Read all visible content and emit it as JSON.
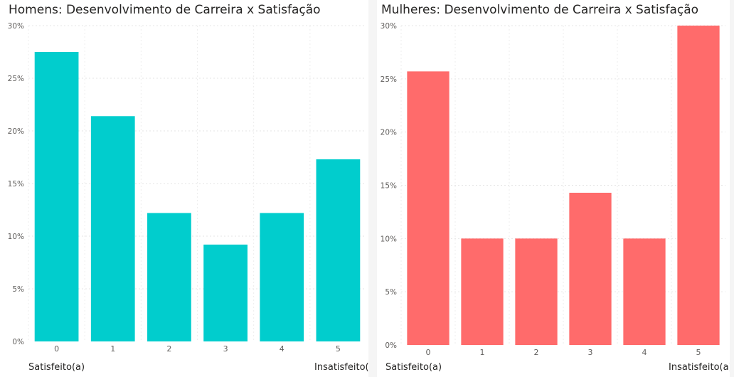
{
  "chart_data": [
    {
      "type": "bar",
      "title": "Homens: Desenvolvimento de Carreira x Satisfação",
      "categories": [
        "0",
        "1",
        "2",
        "3",
        "4",
        "5"
      ],
      "values": [
        27.5,
        21.4,
        12.2,
        9.2,
        12.2,
        17.3
      ],
      "y_ticks": [
        "0%",
        "5%",
        "10%",
        "15%",
        "20%",
        "25%",
        "30%"
      ],
      "ylim": [
        0,
        30
      ],
      "x_end_labels": {
        "left": "Satisfeito(a)",
        "right": "Insatisfeito(a)"
      },
      "grid": true,
      "color": "#01CDCD"
    },
    {
      "type": "bar",
      "title": "Mulheres: Desenvolvimento de Carreira x Satisfação",
      "categories": [
        "0",
        "1",
        "2",
        "3",
        "4",
        "5"
      ],
      "values": [
        25.7,
        10.0,
        10.0,
        14.3,
        10.0,
        30.0
      ],
      "y_ticks": [
        "0%",
        "5%",
        "10%",
        "15%",
        "20%",
        "25%",
        "30%"
      ],
      "ylim": [
        0,
        30
      ],
      "x_end_labels": {
        "left": "Satisfeito(a)",
        "right": "Insatisfeito(a)"
      },
      "grid": true,
      "color": "#FF6B6B"
    }
  ]
}
